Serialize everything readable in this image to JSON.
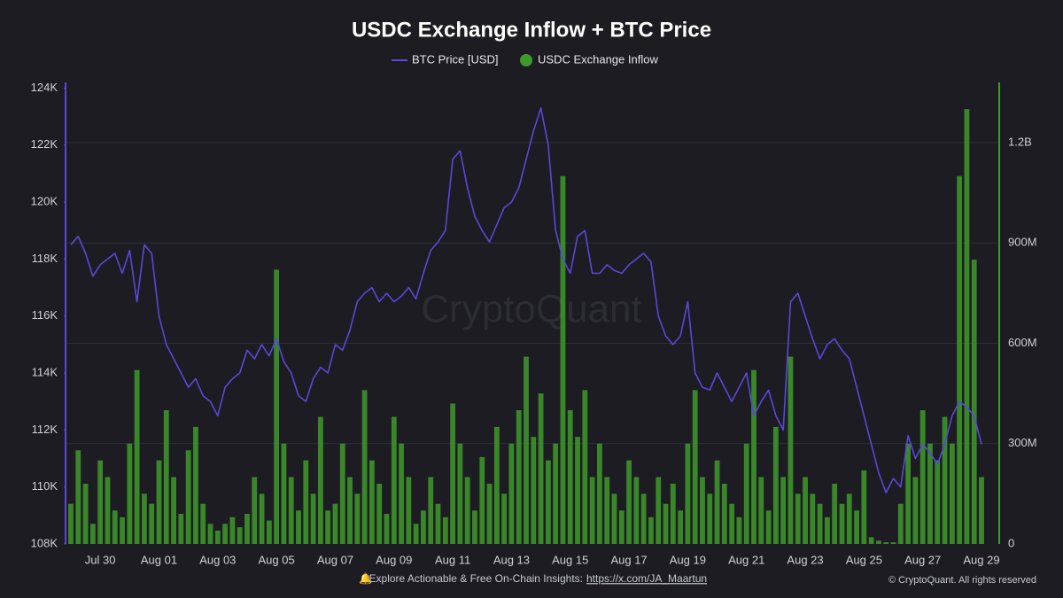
{
  "chart_data": {
    "type": "line",
    "title": "USDC Exchange Inflow + BTC Price",
    "watermark": "CryptoQuant",
    "footer": {
      "icon": "🔔",
      "text": "Explore Actionable & Free On-Chain Insights:",
      "link": "https://x.com/JA_Maartun",
      "copyright": "© CryptoQuant. All rights reserved"
    },
    "categories": [
      null,
      null,
      null,
      null,
      "Jul 30",
      null,
      null,
      null,
      null,
      null,
      null,
      null,
      "Aug 01",
      null,
      null,
      null,
      null,
      null,
      null,
      null,
      "Aug 03",
      null,
      null,
      null,
      null,
      null,
      null,
      null,
      "Aug 05",
      null,
      null,
      null,
      null,
      null,
      null,
      null,
      "Aug 07",
      null,
      null,
      null,
      null,
      null,
      null,
      null,
      "Aug 09",
      null,
      null,
      null,
      null,
      null,
      null,
      null,
      "Aug 11",
      null,
      null,
      null,
      null,
      null,
      null,
      null,
      "Aug 13",
      null,
      null,
      null,
      null,
      null,
      null,
      null,
      "Aug 15",
      null,
      null,
      null,
      null,
      null,
      null,
      null,
      "Aug 17",
      null,
      null,
      null,
      null,
      null,
      null,
      null,
      "Aug 19",
      null,
      null,
      null,
      null,
      null,
      null,
      null,
      "Aug 21",
      null,
      null,
      null,
      null,
      null,
      null,
      null,
      "Aug 23",
      null,
      null,
      null,
      null,
      null,
      null,
      null,
      "Aug 25",
      null,
      null,
      null,
      null,
      null,
      null,
      null,
      "Aug 27",
      null,
      null,
      null,
      null,
      null,
      null,
      null,
      "Aug 29"
    ],
    "series": [
      {
        "name": "BTC Price [USD]",
        "color": "#5a48d8",
        "values": [
          118500,
          118800,
          118200,
          117400,
          117800,
          118000,
          118200,
          117500,
          118300,
          116500,
          118500,
          118200,
          116000,
          115000,
          114500,
          114000,
          113500,
          113800,
          113200,
          113000,
          112500,
          113500,
          113800,
          114000,
          114800,
          114500,
          115000,
          114600,
          115200,
          114400,
          114000,
          113200,
          113000,
          113800,
          114200,
          114000,
          115000,
          114800,
          115500,
          116500,
          116800,
          117000,
          116500,
          116800,
          116500,
          116700,
          117000,
          116600,
          117500,
          118300,
          118600,
          119000,
          121500,
          121800,
          120500,
          119500,
          119000,
          118600,
          119200,
          119800,
          120000,
          120500,
          121500,
          122500,
          123300,
          122000,
          119000,
          118000,
          117500,
          118800,
          119000,
          117500,
          117500,
          117800,
          117600,
          117500,
          117800,
          118000,
          118200,
          117900,
          116000,
          115300,
          115000,
          115300,
          116500,
          114000,
          113500,
          113400,
          114000,
          113500,
          113000,
          113500,
          114000,
          112500,
          113000,
          113400,
          112500,
          112000,
          116500,
          116800,
          116000,
          115200,
          114500,
          115000,
          115200,
          114800,
          114500,
          113500,
          112500,
          111500,
          110500,
          109800,
          110300,
          110000,
          111800,
          111000,
          111500,
          111200,
          110800,
          111500,
          112500,
          113000,
          112800,
          112500,
          111500
        ]
      },
      {
        "name": "USDC Exchange Inflow",
        "color": "#3f9a2c",
        "type": "bar",
        "axis": "y2",
        "values": [
          120000000,
          280000000,
          180000000,
          60000000,
          250000000,
          200000000,
          100000000,
          80000000,
          300000000,
          520000000,
          150000000,
          120000000,
          250000000,
          400000000,
          200000000,
          90000000,
          280000000,
          350000000,
          120000000,
          60000000,
          40000000,
          60000000,
          80000000,
          50000000,
          90000000,
          200000000,
          150000000,
          70000000,
          820000000,
          300000000,
          200000000,
          100000000,
          250000000,
          150000000,
          380000000,
          100000000,
          120000000,
          300000000,
          200000000,
          150000000,
          460000000,
          250000000,
          180000000,
          90000000,
          380000000,
          300000000,
          200000000,
          60000000,
          100000000,
          200000000,
          120000000,
          80000000,
          420000000,
          300000000,
          200000000,
          100000000,
          260000000,
          180000000,
          350000000,
          150000000,
          300000000,
          400000000,
          560000000,
          320000000,
          450000000,
          250000000,
          300000000,
          1100000000,
          400000000,
          320000000,
          460000000,
          200000000,
          300000000,
          200000000,
          150000000,
          100000000,
          250000000,
          200000000,
          150000000,
          80000000,
          200000000,
          120000000,
          180000000,
          100000000,
          300000000,
          460000000,
          200000000,
          150000000,
          250000000,
          180000000,
          120000000,
          80000000,
          300000000,
          520000000,
          200000000,
          100000000,
          350000000,
          200000000,
          560000000,
          150000000,
          200000000,
          150000000,
          120000000,
          80000000,
          180000000,
          120000000,
          150000000,
          100000000,
          220000000,
          20000000,
          10000000,
          5000000,
          5000000,
          120000000,
          300000000,
          200000000,
          400000000,
          300000000,
          250000000,
          380000000,
          300000000,
          1100000000,
          1300000000,
          850000000,
          200000000
        ]
      }
    ],
    "ylim": [
      108000,
      124200
    ],
    "yticks": [
      {
        "value": 108000,
        "label": "108K"
      },
      {
        "value": 110000,
        "label": "110K"
      },
      {
        "value": 112000,
        "label": "112K"
      },
      {
        "value": 114000,
        "label": "114K"
      },
      {
        "value": 116000,
        "label": "116K"
      },
      {
        "value": 118000,
        "label": "118K"
      },
      {
        "value": 120000,
        "label": "120K"
      },
      {
        "value": 122000,
        "label": "122K"
      },
      {
        "value": 124000,
        "label": "124K"
      }
    ],
    "y2lim": [
      0,
      1380000000
    ],
    "y2ticks": [
      0,
      {
        "value": 300000000,
        "label": "300M"
      },
      {
        "value": 600000000,
        "label": "600M"
      },
      {
        "value": 900000000,
        "label": "900M"
      },
      {
        "value": 1200000000,
        "label": "1.2B"
      }
    ],
    "grid": true
  }
}
